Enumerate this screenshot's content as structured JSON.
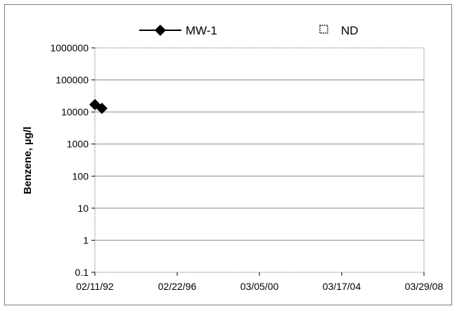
{
  "chart_data": {
    "type": "scatter",
    "title": "",
    "xlabel": "",
    "ylabel": "Benzene, µg/l",
    "y_scale": "log",
    "ylim": [
      0.1,
      1000000
    ],
    "y_ticks": [
      "1000000",
      "100000",
      "10000",
      "1000",
      "100",
      "10",
      "1",
      "0.1"
    ],
    "x_ticks": [
      "02/11/92",
      "02/22/96",
      "03/05/00",
      "03/17/04",
      "03/29/08"
    ],
    "xlim": [
      "1992-02-11",
      "2008-03-29"
    ],
    "grid": "horizontal",
    "legend_position": "top",
    "series": [
      {
        "name": "MW-1",
        "marker": "filled-diamond",
        "color": "#000000",
        "points": [
          {
            "x": "1992-02-11",
            "y": 17000
          },
          {
            "x": "1992-06-15",
            "y": 13000
          }
        ]
      },
      {
        "name": "ND",
        "marker": "open-square",
        "color": "#000000",
        "points": []
      }
    ]
  }
}
